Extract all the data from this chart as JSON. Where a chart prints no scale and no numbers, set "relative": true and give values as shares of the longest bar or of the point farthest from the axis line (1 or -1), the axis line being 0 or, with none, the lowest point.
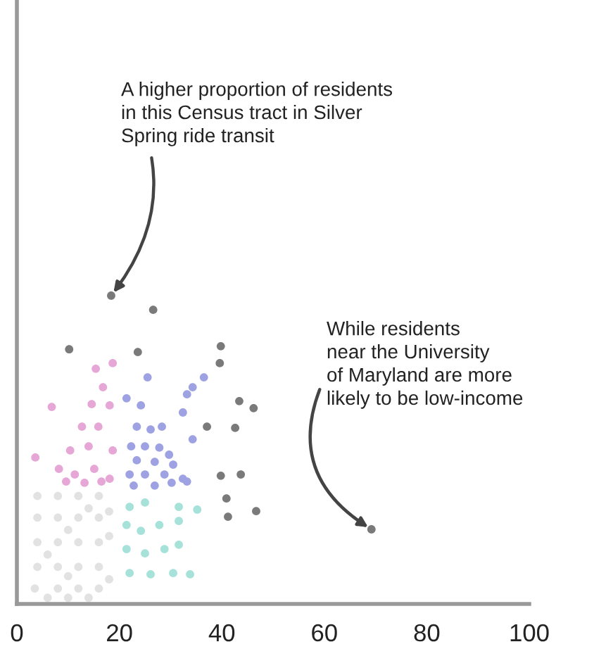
{
  "chart_data": {
    "type": "scatter",
    "relative": true,
    "marker": "circle",
    "grid": false,
    "xlim": [
      0,
      100
    ],
    "xticks": [
      0,
      20,
      40,
      60,
      80,
      100
    ],
    "series": [
      {
        "color": "#e2e2e2",
        "x": [
          3.5,
          4,
          4,
          4,
          4,
          6,
          8,
          8,
          8,
          8,
          8,
          10,
          12,
          12,
          12,
          12,
          12,
          14,
          16,
          16,
          16,
          16,
          16,
          18,
          18,
          6,
          10,
          14,
          18,
          10
        ],
        "values": [
          0.05,
          0.12,
          0.2,
          0.28,
          0.35,
          0.02,
          0.05,
          0.12,
          0.2,
          0.28,
          0.35,
          0.02,
          0.05,
          0.12,
          0.2,
          0.28,
          0.35,
          0.02,
          0.05,
          0.12,
          0.2,
          0.28,
          0.35,
          0.08,
          0.22,
          0.16,
          0.24,
          0.31,
          0.3,
          0.09
        ]
      },
      {
        "color": "#e6a6d6",
        "x": [
          15.4,
          18.7,
          16.8,
          6.8,
          14.6,
          18.1,
          12.7,
          15.9,
          3.6,
          10.4,
          14.0,
          18.7,
          8.2,
          11.3,
          15.1,
          18.1,
          9.6,
          13.2,
          16.5
        ],
        "values": [
          0.763,
          0.781,
          0.703,
          0.639,
          0.648,
          0.644,
          0.575,
          0.575,
          0.475,
          0.498,
          0.511,
          0.498,
          0.438,
          0.42,
          0.438,
          0.406,
          0.397,
          0.393,
          0.397
        ]
      },
      {
        "color": "#9ea2e2",
        "x": [
          25.5,
          21.4,
          24.2,
          34.3,
          33.2,
          36.5,
          32.4,
          23.4,
          26.1,
          28.3,
          34.3,
          22.3,
          25,
          27.8,
          29.7,
          23.4,
          26.9,
          30.5,
          22,
          25,
          28.8,
          32.4,
          22.8,
          26.9,
          30.2,
          33.2
        ],
        "values": [
          0.735,
          0.667,
          0.644,
          0.703,
          0.68,
          0.735,
          0.621,
          0.575,
          0.566,
          0.575,
          0.534,
          0.511,
          0.511,
          0.507,
          0.484,
          0.466,
          0.461,
          0.452,
          0.42,
          0.42,
          0.42,
          0.406,
          0.384,
          0.384,
          0.393,
          0.397
        ]
      },
      {
        "color": "#a6e2da",
        "x": [
          22,
          25,
          31.6,
          35.2,
          21.4,
          24.2,
          27.8,
          31.6,
          21.4,
          25,
          28.8,
          31.6,
          22,
          26.1,
          30.5,
          33.8
        ],
        "values": [
          0.315,
          0.329,
          0.315,
          0.306,
          0.256,
          0.237,
          0.256,
          0.269,
          0.178,
          0.164,
          0.178,
          0.192,
          0.1,
          0.096,
          0.1,
          0.096
        ]
      },
      {
        "color": "#7a7a7a",
        "x": [
          18.4,
          26.6,
          10.2,
          23.6,
          39.8,
          39.6,
          43.4,
          46.2,
          42.6,
          37.1,
          39.8,
          43.7,
          40.9,
          46.7,
          41.2,
          69.2
        ],
        "values": [
          1.0,
          0.954,
          0.826,
          0.817,
          0.836,
          0.781,
          0.658,
          0.635,
          0.571,
          0.575,
          0.416,
          0.42,
          0.342,
          0.301,
          0.283,
          0.242
        ]
      }
    ],
    "annotations": [
      {
        "text": "A higher proportion of residents\nin this Census tract in Silver\nSpring ride transit",
        "x": 18.4,
        "y": 1.0
      },
      {
        "text": "While residents\nnear the University\nof Maryland are more\nlikely to be low-income",
        "x": 69.2,
        "y": 0.242
      }
    ]
  }
}
